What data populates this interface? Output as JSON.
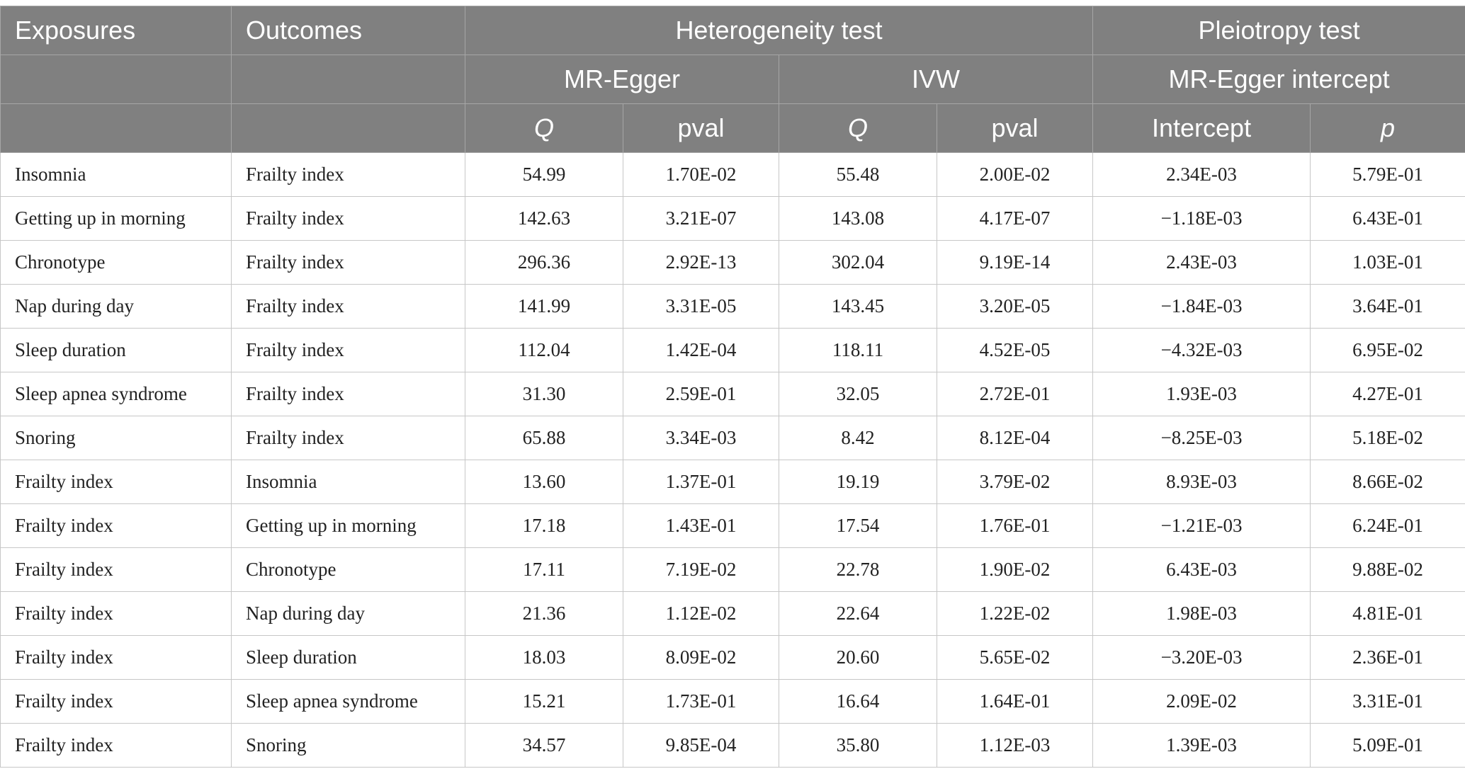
{
  "header": {
    "exposures": "Exposures",
    "outcomes": "Outcomes",
    "heterogeneity": "Heterogeneity test",
    "pleiotropy": "Pleiotropy test",
    "mr_egger": "MR-Egger",
    "ivw": "IVW",
    "mr_egger_intercept": "MR-Egger intercept",
    "q1": "Q",
    "pval1": "pval",
    "q2": "Q",
    "pval2": "pval",
    "intercept": "Intercept",
    "p": "p"
  },
  "rows": [
    [
      "Insomnia",
      "Frailty index",
      "54.99",
      "1.70E-02",
      "55.48",
      "2.00E-02",
      "2.34E-03",
      "5.79E-01"
    ],
    [
      "Getting up in morning",
      "Frailty index",
      "142.63",
      "3.21E-07",
      "143.08",
      "4.17E-07",
      "−1.18E-03",
      "6.43E-01"
    ],
    [
      "Chronotype",
      "Frailty index",
      "296.36",
      "2.92E-13",
      "302.04",
      "9.19E-14",
      "2.43E-03",
      "1.03E-01"
    ],
    [
      "Nap during day",
      "Frailty index",
      "141.99",
      "3.31E-05",
      "143.45",
      "3.20E-05",
      "−1.84E-03",
      "3.64E-01"
    ],
    [
      "Sleep duration",
      "Frailty index",
      "112.04",
      "1.42E-04",
      "118.11",
      "4.52E-05",
      "−4.32E-03",
      "6.95E-02"
    ],
    [
      "Sleep apnea syndrome",
      "Frailty index",
      "31.30",
      "2.59E-01",
      "32.05",
      "2.72E-01",
      "1.93E-03",
      "4.27E-01"
    ],
    [
      "Snoring",
      "Frailty index",
      "65.88",
      "3.34E-03",
      "8.42",
      "8.12E-04",
      "−8.25E-03",
      "5.18E-02"
    ],
    [
      "Frailty index",
      "Insomnia",
      "13.60",
      "1.37E-01",
      "19.19",
      "3.79E-02",
      "8.93E-03",
      "8.66E-02"
    ],
    [
      "Frailty index",
      "Getting up in morning",
      "17.18",
      "1.43E-01",
      "17.54",
      "1.76E-01",
      "−1.21E-03",
      "6.24E-01"
    ],
    [
      "Frailty index",
      "Chronotype",
      "17.11",
      "7.19E-02",
      "22.78",
      "1.90E-02",
      "6.43E-03",
      "9.88E-02"
    ],
    [
      "Frailty index",
      "Nap during day",
      "21.36",
      "1.12E-02",
      "22.64",
      "1.22E-02",
      "1.98E-03",
      "4.81E-01"
    ],
    [
      "Frailty index",
      "Sleep duration",
      "18.03",
      "8.09E-02",
      "20.60",
      "5.65E-02",
      "−3.20E-03",
      "2.36E-01"
    ],
    [
      "Frailty index",
      "Sleep apnea syndrome",
      "15.21",
      "1.73E-01",
      "16.64",
      "1.64E-01",
      "2.09E-02",
      "3.31E-01"
    ],
    [
      "Frailty index",
      "Snoring",
      "34.57",
      "9.85E-04",
      "35.80",
      "1.12E-03",
      "1.39E-03",
      "5.09E-01"
    ]
  ]
}
